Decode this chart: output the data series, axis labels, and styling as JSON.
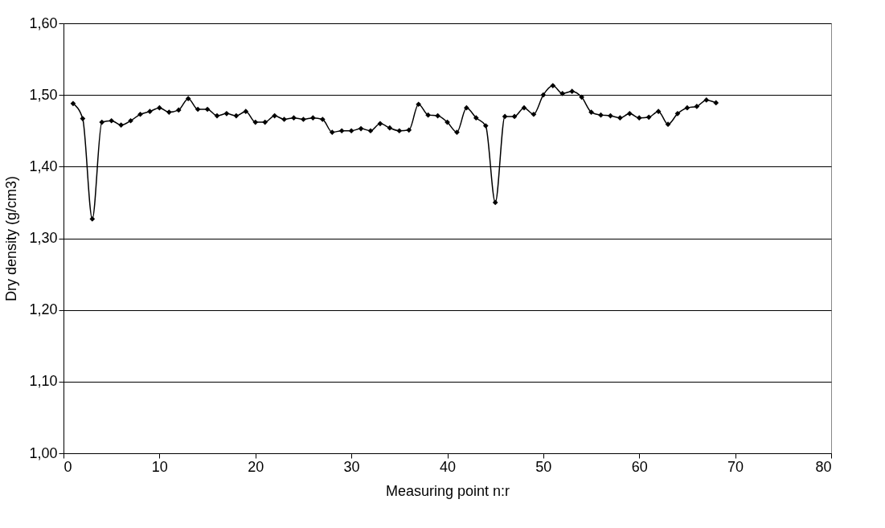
{
  "chart_data": {
    "type": "line",
    "xlabel": "Measuring point n:r",
    "ylabel": "Dry density (g/cm3)",
    "x": [
      1,
      2,
      3,
      4,
      5,
      6,
      7,
      8,
      9,
      10,
      11,
      12,
      13,
      14,
      15,
      16,
      17,
      18,
      19,
      20,
      21,
      22,
      23,
      24,
      25,
      26,
      27,
      28,
      29,
      30,
      31,
      32,
      33,
      34,
      35,
      36,
      37,
      38,
      39,
      40,
      41,
      42,
      43,
      44,
      45,
      46,
      47,
      48,
      49,
      50,
      51,
      52,
      53,
      54,
      55,
      56,
      57,
      58,
      59,
      60,
      61,
      62,
      63,
      64,
      65,
      66,
      67,
      68
    ],
    "series": [
      {
        "color": "#000000",
        "values": [
          1.488,
          1.467,
          1.327,
          1.462,
          1.464,
          1.458,
          1.464,
          1.473,
          1.477,
          1.482,
          1.476,
          1.479,
          1.495,
          1.48,
          1.48,
          1.471,
          1.474,
          1.471,
          1.477,
          1.462,
          1.462,
          1.471,
          1.466,
          1.468,
          1.466,
          1.468,
          1.466,
          1.448,
          1.45,
          1.45,
          1.453,
          1.45,
          1.46,
          1.454,
          1.45,
          1.451,
          1.487,
          1.472,
          1.471,
          1.462,
          1.448,
          1.482,
          1.468,
          1.457,
          1.35,
          1.47,
          1.47,
          1.482,
          1.473,
          1.5,
          1.513,
          1.502,
          1.505,
          1.497,
          1.476,
          1.472,
          1.471,
          1.468,
          1.474,
          1.468,
          1.469,
          1.477,
          1.459,
          1.474,
          1.482,
          1.484,
          1.493,
          1.489
        ]
      }
    ],
    "xlim": [
      0,
      80
    ],
    "xticks": [
      0,
      10,
      20,
      30,
      40,
      50,
      60,
      70,
      80
    ],
    "ylim": [
      1.0,
      1.6
    ],
    "yticks": [
      {
        "value": 1.0,
        "label": "1,00"
      },
      {
        "value": 1.1,
        "label": "1,10"
      },
      {
        "value": 1.2,
        "label": "1,20"
      },
      {
        "value": 1.3,
        "label": "1,30"
      },
      {
        "value": 1.4,
        "label": "1,40"
      },
      {
        "value": 1.5,
        "label": "1,50"
      },
      {
        "value": 1.6,
        "label": "1,60"
      }
    ],
    "grid": "y",
    "legend": false,
    "marker": "diamond",
    "line_style": "solid"
  }
}
